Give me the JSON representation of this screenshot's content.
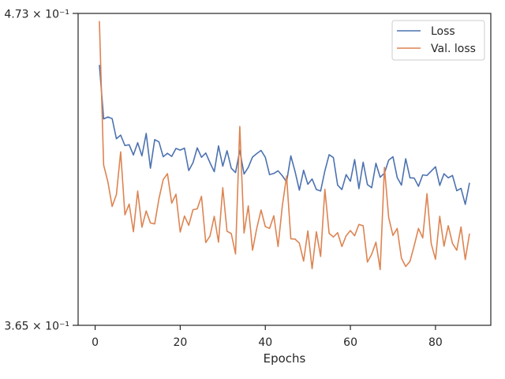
{
  "chart_data": {
    "type": "line",
    "title": "",
    "xlabel": "Epochs",
    "ylabel": "",
    "xlim": [
      -4,
      93
    ],
    "ylim": [
      0.365,
      0.473
    ],
    "y_scale": "log",
    "x_ticks": [
      0,
      20,
      40,
      60,
      80
    ],
    "y_tick_labels": {
      "top": "4.73 × 10⁻¹",
      "bottom": "3.65 × 10⁻¹"
    },
    "grid": false,
    "legend_position": "upper right",
    "series": [
      {
        "name": "Loss",
        "color": "#4c72b0",
        "x": [
          1,
          2,
          3,
          4,
          5,
          6,
          7,
          8,
          9,
          10,
          11,
          12,
          13,
          14,
          15,
          16,
          17,
          18,
          19,
          20,
          21,
          22,
          23,
          24,
          25,
          26,
          27,
          28,
          29,
          30,
          31,
          32,
          33,
          34,
          35,
          36,
          37,
          38,
          39,
          40,
          41,
          42,
          43,
          44,
          45,
          46,
          47,
          48,
          49,
          50,
          51,
          52,
          53,
          54,
          55,
          56,
          57,
          58,
          59,
          60,
          61,
          62,
          63,
          64,
          65,
          66,
          67,
          68,
          69,
          70,
          71,
          72,
          73,
          74,
          75,
          76,
          77,
          78,
          79,
          80,
          81,
          82,
          83,
          84,
          85,
          86,
          87,
          88
        ],
        "values": [
          0.4532,
          0.4333,
          0.434,
          0.4334,
          0.4262,
          0.4275,
          0.4238,
          0.4241,
          0.4205,
          0.4248,
          0.4202,
          0.4281,
          0.4159,
          0.4259,
          0.4251,
          0.4199,
          0.4211,
          0.42,
          0.4228,
          0.4222,
          0.4229,
          0.4151,
          0.4178,
          0.423,
          0.4197,
          0.4212,
          0.4178,
          0.4147,
          0.4237,
          0.4166,
          0.422,
          0.4159,
          0.4144,
          0.4221,
          0.4139,
          0.4162,
          0.4198,
          0.421,
          0.4221,
          0.4197,
          0.4137,
          0.4141,
          0.415,
          0.4133,
          0.4112,
          0.4202,
          0.4147,
          0.4084,
          0.4152,
          0.4104,
          0.4122,
          0.4086,
          0.4081,
          0.415,
          0.4206,
          0.4196,
          0.4101,
          0.4086,
          0.4137,
          0.4114,
          0.4189,
          0.4089,
          0.418,
          0.4103,
          0.4092,
          0.4176,
          0.4128,
          0.4142,
          0.4187,
          0.4199,
          0.4127,
          0.4101,
          0.4192,
          0.4126,
          0.4125,
          0.4097,
          0.4136,
          0.4134,
          0.4149,
          0.4164,
          0.41,
          0.414,
          0.4126,
          0.4134,
          0.4082,
          0.409,
          0.4036,
          0.4109
        ]
      },
      {
        "name": "Val. loss",
        "color": "#dd8452",
        "x": [
          1,
          2,
          3,
          4,
          5,
          6,
          7,
          8,
          9,
          10,
          11,
          12,
          13,
          14,
          15,
          16,
          17,
          18,
          19,
          20,
          21,
          22,
          23,
          24,
          25,
          26,
          27,
          28,
          29,
          30,
          31,
          32,
          33,
          34,
          35,
          36,
          37,
          38,
          39,
          40,
          41,
          42,
          43,
          44,
          45,
          46,
          47,
          48,
          49,
          50,
          51,
          52,
          53,
          54,
          55,
          56,
          57,
          58,
          59,
          60,
          61,
          62,
          63,
          64,
          65,
          66,
          67,
          68,
          69,
          70,
          71,
          72,
          73,
          74,
          75,
          76,
          77,
          78,
          79,
          80,
          81,
          82,
          83,
          84,
          85,
          86,
          87,
          88
        ],
        "values": [
          0.47,
          0.417,
          0.4112,
          0.4029,
          0.4069,
          0.4216,
          0.4001,
          0.4037,
          0.3945,
          0.4081,
          0.396,
          0.4014,
          0.3974,
          0.3971,
          0.4055,
          0.412,
          0.414,
          0.404,
          0.407,
          0.3944,
          0.3997,
          0.3966,
          0.4018,
          0.4021,
          0.4063,
          0.391,
          0.3931,
          0.3996,
          0.3911,
          0.4092,
          0.3947,
          0.3939,
          0.3873,
          0.4306,
          0.3941,
          0.4031,
          0.3885,
          0.3957,
          0.4017,
          0.3962,
          0.3956,
          0.3998,
          0.3897,
          0.4031,
          0.4132,
          0.3922,
          0.3921,
          0.3908,
          0.385,
          0.3948,
          0.3826,
          0.3945,
          0.3865,
          0.4087,
          0.394,
          0.3928,
          0.3942,
          0.3897,
          0.3932,
          0.3949,
          0.3932,
          0.3969,
          0.3965,
          0.3847,
          0.3872,
          0.3911,
          0.3823,
          0.4162,
          0.3992,
          0.3933,
          0.3956,
          0.3859,
          0.3833,
          0.3849,
          0.39,
          0.3956,
          0.3925,
          0.4072,
          0.3906,
          0.3856,
          0.3996,
          0.3898,
          0.3965,
          0.3907,
          0.3885,
          0.3961,
          0.3855,
          0.3939
        ]
      }
    ]
  }
}
